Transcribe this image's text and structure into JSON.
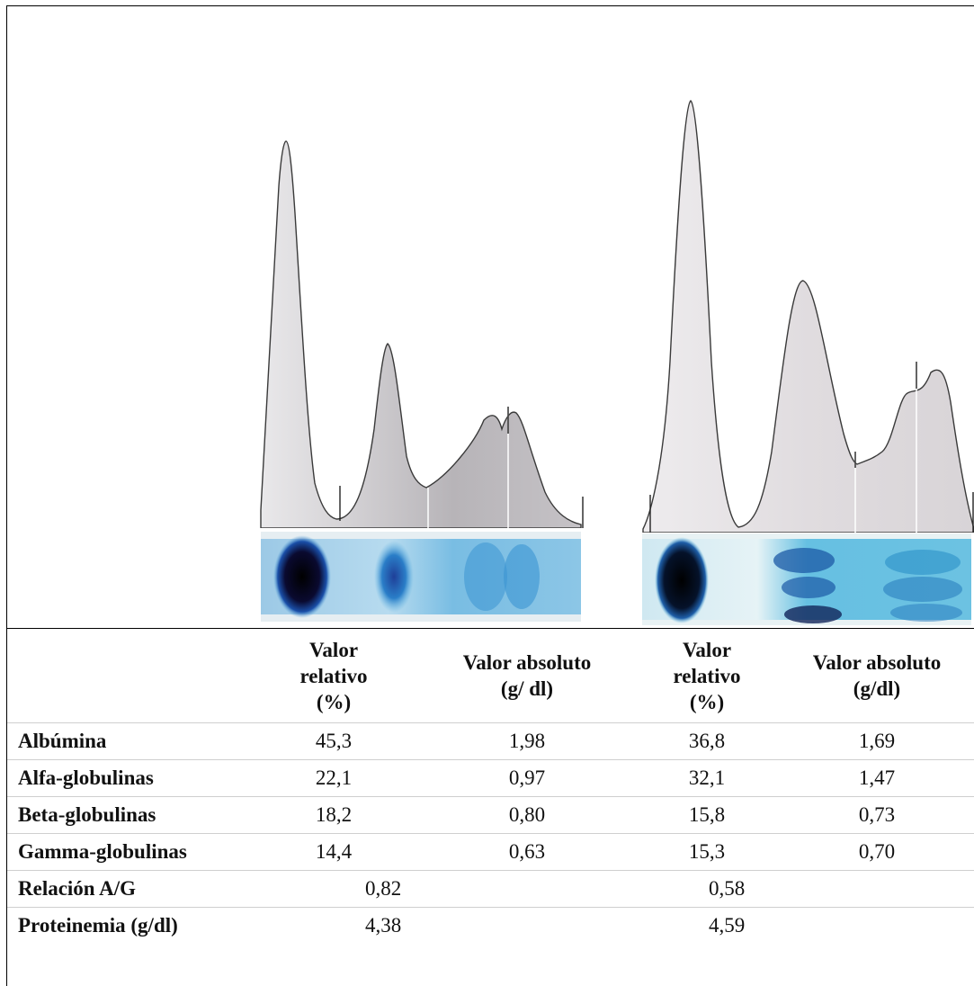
{
  "figure": {
    "panels": [
      {
        "id": "left",
        "strip_color": "#2a93d6",
        "trace_fill": "#c9c7ca"
      },
      {
        "id": "right",
        "strip_color": "#2aa6d8",
        "trace_fill": "#e4e1e3"
      }
    ]
  },
  "table": {
    "headers": {
      "col1": "Valor relativo (%)",
      "col2": "Valor absoluto (g/ dl)",
      "col3": "Valor relativo (%)",
      "col4": "Valor absoluto (g/dl)"
    },
    "rows": [
      {
        "label": "Albúmina",
        "v1": "45,3",
        "v2": "1,98",
        "v3": "36,8",
        "v4": "1,69"
      },
      {
        "label": "Alfa-globulinas",
        "v1": "22,1",
        "v2": "0,97",
        "v3": "32,1",
        "v4": "1,47"
      },
      {
        "label": "Beta-globulinas",
        "v1": "18,2",
        "v2": "0,80",
        "v3": "15,8",
        "v4": "0,73"
      },
      {
        "label": "Gamma-globulinas",
        "v1": "14,4",
        "v2": "0,63",
        "v3": "15,3",
        "v4": "0,70"
      }
    ],
    "summary": [
      {
        "label": "Relación A/G",
        "left": "0,82",
        "right": "0,58"
      },
      {
        "label": "Proteinemia (g/dl)",
        "left": "4,38",
        "right": "4,59"
      }
    ]
  }
}
